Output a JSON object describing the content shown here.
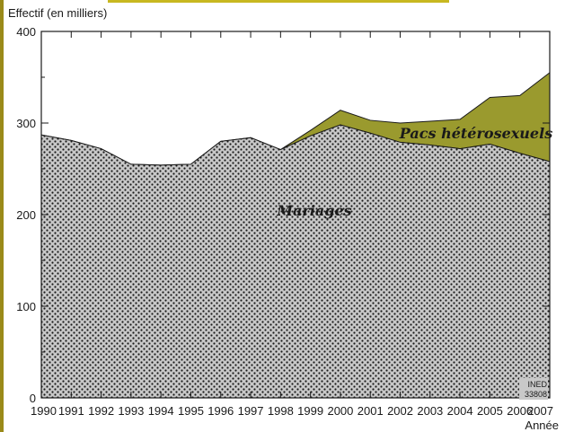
{
  "chart_data": {
    "type": "area",
    "stacked": true,
    "ylabel": "Effectif (en milliers)",
    "xlabel": "Année",
    "ylim": [
      0,
      400
    ],
    "yticks": [
      0,
      100,
      200,
      300,
      400
    ],
    "x": [
      1990,
      1991,
      1992,
      1993,
      1994,
      1995,
      1996,
      1997,
      1998,
      1999,
      2000,
      2001,
      2002,
      2003,
      2004,
      2005,
      2006,
      2007
    ],
    "series": [
      {
        "name": "Mariages",
        "values": [
          287,
          281,
          272,
          255,
          254,
          255,
          280,
          284,
          271,
          286,
          298,
          289,
          279,
          276,
          272,
          277,
          267,
          258
        ]
      },
      {
        "name": "Pacs hétérosexuels",
        "values": [
          0,
          0,
          0,
          0,
          0,
          0,
          0,
          0,
          0,
          6,
          16,
          14,
          21,
          26,
          32,
          51,
          63,
          97
        ]
      }
    ],
    "colors": {
      "Mariages": "#c8c8c8",
      "Pacs hétérosexuels": "#9a9a2e"
    },
    "grid": false,
    "credit": [
      "INED",
      "33808"
    ]
  }
}
